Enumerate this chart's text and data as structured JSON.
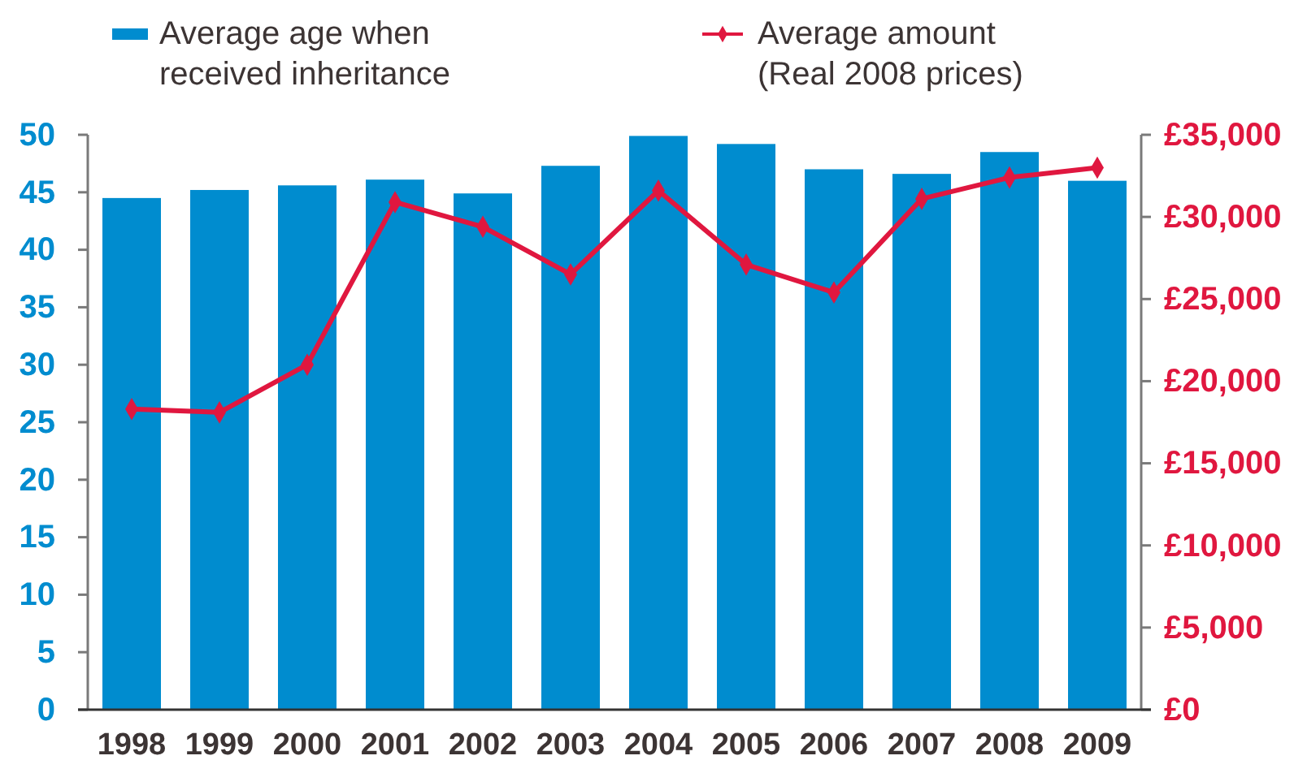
{
  "chart_data": {
    "type": "bar",
    "categories": [
      "1998",
      "1999",
      "2000",
      "2001",
      "2002",
      "2003",
      "2004",
      "2005",
      "2006",
      "2007",
      "2008",
      "2009"
    ],
    "series": [
      {
        "name": "Average age when received inheritance",
        "color": "#008ccf",
        "values": [
          44.5,
          45.2,
          45.6,
          46.1,
          44.9,
          47.3,
          49.9,
          49.2,
          47.0,
          46.6,
          48.5,
          46.0
        ]
      },
      {
        "name": "Average amount (Real 2008 prices)",
        "type": "line",
        "axis": "y2",
        "color": "#e0173f",
        "values": [
          18300,
          18100,
          21000,
          30900,
          29400,
          26500,
          31600,
          27100,
          25400,
          31100,
          32400,
          33000
        ]
      }
    ],
    "ylim": [
      0,
      50
    ],
    "yticks": [
      0,
      5,
      10,
      15,
      20,
      25,
      30,
      35,
      40,
      45,
      50
    ],
    "y2lim": [
      0,
      35000
    ],
    "y2ticks": [
      {
        "value": 0,
        "label": "£0"
      },
      {
        "value": 5000,
        "label": "£5,000"
      },
      {
        "value": 10000,
        "label": "£10,000"
      },
      {
        "value": 15000,
        "label": "£15,000"
      },
      {
        "value": 20000,
        "label": "£20,000"
      },
      {
        "value": 25000,
        "label": "£25,000"
      },
      {
        "value": 30000,
        "label": "£30,000"
      },
      {
        "value": 35000,
        "label": "£35,000"
      }
    ],
    "marker": "diamond",
    "legend": "top"
  }
}
